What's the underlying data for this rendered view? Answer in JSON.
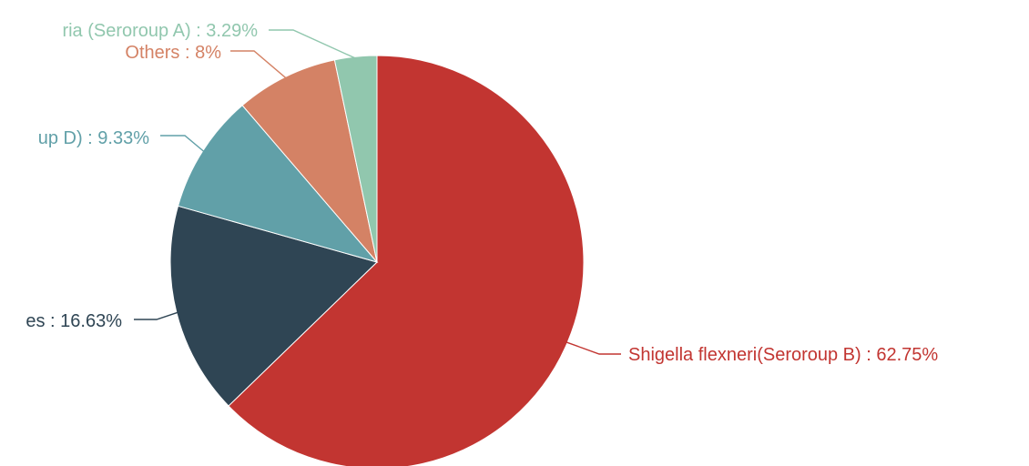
{
  "chart_data": {
    "type": "pie",
    "title": "",
    "slices": [
      {
        "label": "Shigella  flexneri(Seroroup B) : 62.75%",
        "name": "Shigella  flexneri(Seroroup B)",
        "value": 62.75,
        "color": "#c23531"
      },
      {
        "label": "es : 16.63%",
        "name": "es",
        "value": 16.63,
        "color": "#2f4554"
      },
      {
        "label": "up D) : 9.33%",
        "name": "up D)",
        "value": 9.33,
        "color": "#61a0a8"
      },
      {
        "label": "Others : 8%",
        "name": "Others",
        "value": 8,
        "color": "#d48265"
      },
      {
        "label": "ria (Seroroup A) : 3.29%",
        "name": "ria (Seroroup A)",
        "value": 3.29,
        "color": "#91c7ae"
      }
    ]
  }
}
